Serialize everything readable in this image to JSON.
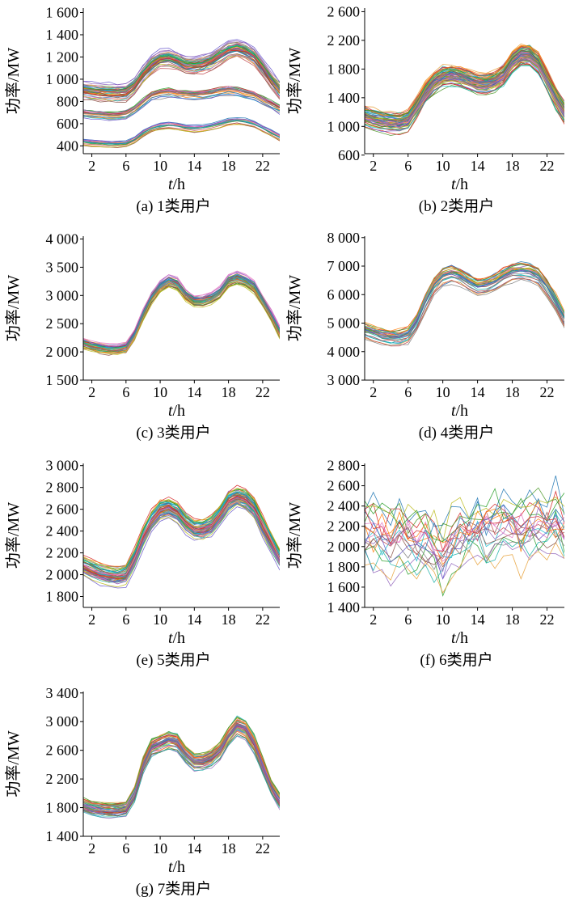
{
  "ylabel": "功率/MW",
  "xlabel_t": "t",
  "xlabel_unit": "/h",
  "x_ticks": [
    "2",
    "6",
    "10",
    "14",
    "18",
    "22"
  ],
  "series_colors": [
    "#1f77b4",
    "#ff7f0e",
    "#2ca02c",
    "#d62728",
    "#9467bd",
    "#8c564b",
    "#e377c2",
    "#7f7f7f",
    "#bcbd22",
    "#17becf",
    "#e8a33d",
    "#4c9a2a",
    "#c44e52",
    "#6a5acd",
    "#20b2aa"
  ],
  "chart_data": [
    {
      "type": "line",
      "caption": "(a)  1类用户",
      "xlim": [
        1,
        24
      ],
      "ylim": [
        330,
        1640
      ],
      "y_ticks": [
        400,
        600,
        800,
        1000,
        1200,
        1400,
        1600
      ],
      "y_tick_labels": [
        "400",
        "600",
        "800",
        "1 000",
        "1 200",
        "1 400",
        "1 600"
      ],
      "clusters": [
        {
          "profile": [
            440,
            430,
            425,
            420,
            420,
            425,
            460,
            520,
            560,
            580,
            590,
            580,
            565,
            560,
            565,
            580,
            600,
            620,
            630,
            620,
            600,
            560,
            520,
            480
          ],
          "count": 16,
          "spread": 40
        },
        {
          "profile": [
            700,
            690,
            685,
            680,
            680,
            690,
            730,
            800,
            860,
            880,
            890,
            880,
            870,
            865,
            870,
            880,
            900,
            910,
            900,
            880,
            860,
            820,
            780,
            740
          ],
          "count": 22,
          "spread": 55
        },
        {
          "profile": [
            920,
            910,
            900,
            895,
            895,
            905,
            960,
            1060,
            1150,
            1200,
            1210,
            1180,
            1150,
            1140,
            1150,
            1180,
            1230,
            1280,
            1300,
            1270,
            1220,
            1120,
            1010,
            920
          ],
          "count": 45,
          "spread": 90
        }
      ]
    },
    {
      "type": "line",
      "caption": "(b)  2类用户",
      "xlim": [
        1,
        24
      ],
      "ylim": [
        620,
        2650
      ],
      "y_ticks": [
        600,
        1000,
        1400,
        1800,
        2200,
        2600
      ],
      "y_tick_labels": [
        "600",
        "1 000",
        "1 400",
        "1 800",
        "2 200",
        "2 600"
      ],
      "clusters": [
        {
          "profile": [
            1150,
            1110,
            1080,
            1060,
            1060,
            1090,
            1280,
            1480,
            1620,
            1700,
            1720,
            1700,
            1650,
            1600,
            1600,
            1640,
            1720,
            1900,
            2000,
            2000,
            1900,
            1650,
            1400,
            1200
          ],
          "count": 70,
          "spread": 170
        }
      ]
    },
    {
      "type": "line",
      "caption": "(c)  3类用户",
      "xlim": [
        1,
        24
      ],
      "ylim": [
        1500,
        4050
      ],
      "y_ticks": [
        1500,
        2000,
        2500,
        3000,
        3500,
        4000
      ],
      "y_tick_labels": [
        "1 500",
        "2 000",
        "2 500",
        "3 000",
        "3 500",
        "4 000"
      ],
      "clusters": [
        {
          "profile": [
            2150,
            2100,
            2070,
            2050,
            2050,
            2080,
            2300,
            2650,
            2950,
            3150,
            3250,
            3200,
            3000,
            2900,
            2900,
            2950,
            3050,
            3250,
            3300,
            3250,
            3150,
            2900,
            2650,
            2350
          ],
          "count": 45,
          "spread": 140
        }
      ]
    },
    {
      "type": "line",
      "caption": "(d)  4类用户",
      "xlim": [
        1,
        24
      ],
      "ylim": [
        3000,
        8050
      ],
      "y_ticks": [
        3000,
        4000,
        5000,
        6000,
        7000,
        8000
      ],
      "y_tick_labels": [
        "3 000",
        "4 000",
        "5 000",
        "6 000",
        "7 000",
        "8 000"
      ],
      "clusters": [
        {
          "profile": [
            4800,
            4700,
            4600,
            4550,
            4550,
            4650,
            5100,
            5800,
            6400,
            6700,
            6800,
            6700,
            6500,
            6350,
            6400,
            6500,
            6700,
            6850,
            6900,
            6850,
            6700,
            6300,
            5800,
            5200
          ],
          "count": 32,
          "spread": 380
        }
      ]
    },
    {
      "type": "line",
      "caption": "(e)  5类用户",
      "xlim": [
        1,
        24
      ],
      "ylim": [
        1700,
        3020
      ],
      "y_ticks": [
        1800,
        2000,
        2200,
        2400,
        2600,
        2800,
        3000
      ],
      "y_tick_labels": [
        "1 800",
        "2 000",
        "2 200",
        "2 400",
        "2 600",
        "2 800",
        "3 000"
      ],
      "clusters": [
        {
          "profile": [
            2080,
            2040,
            2010,
            1990,
            1980,
            2000,
            2150,
            2350,
            2500,
            2600,
            2620,
            2580,
            2480,
            2420,
            2420,
            2460,
            2560,
            2680,
            2720,
            2700,
            2620,
            2450,
            2300,
            2150
          ],
          "count": 55,
          "spread": 110
        }
      ]
    },
    {
      "type": "line",
      "caption": "(f)  6类用户",
      "xlim": [
        1,
        24
      ],
      "ylim": [
        1400,
        2820
      ],
      "y_ticks": [
        1400,
        1600,
        1800,
        2000,
        2200,
        2400,
        2600,
        2800
      ],
      "y_tick_labels": [
        "1 400",
        "1 600",
        "1 800",
        "2 000",
        "2 200",
        "2 400",
        "2 600",
        "2 800"
      ],
      "clusters": [
        {
          "profile": [
            2150,
            2150,
            2100,
            2050,
            2150,
            2100,
            2050,
            2150,
            1950,
            1900,
            2050,
            2100,
            2150,
            2200,
            2150,
            2200,
            2250,
            2200,
            2150,
            2200,
            2250,
            2200,
            2250,
            2200
          ],
          "count": 22,
          "spread": 330,
          "jagged": 130
        }
      ]
    },
    {
      "type": "line",
      "caption": "(g)  7类用户",
      "xlim": [
        1,
        24
      ],
      "ylim": [
        1400,
        3420
      ],
      "y_ticks": [
        1400,
        1800,
        2200,
        2600,
        3000,
        3400
      ],
      "y_tick_labels": [
        "1 400",
        "1 800",
        "2 200",
        "2 600",
        "3 000",
        "3 400"
      ],
      "clusters": [
        {
          "profile": [
            1850,
            1800,
            1780,
            1770,
            1770,
            1800,
            2000,
            2400,
            2650,
            2700,
            2750,
            2720,
            2550,
            2450,
            2450,
            2500,
            2600,
            2800,
            2950,
            2900,
            2700,
            2400,
            2100,
            1900
          ],
          "count": 45,
          "spread": 130
        }
      ]
    }
  ]
}
